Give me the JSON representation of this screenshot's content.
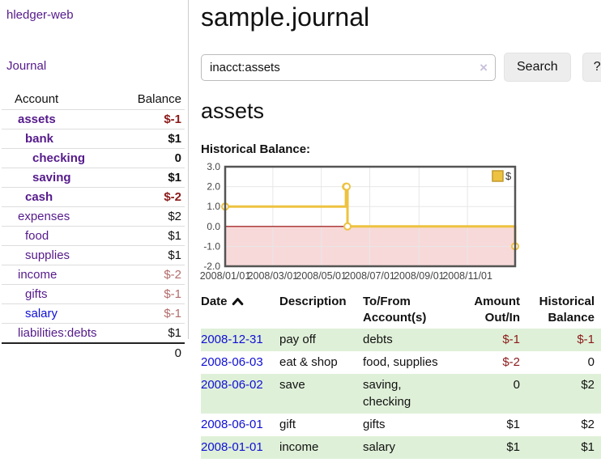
{
  "brand": "hledger-web",
  "nav": {
    "journal": "Journal"
  },
  "colors": {
    "link_purple": "#551a8b",
    "link_blue": "#0f0fd6",
    "negative_strong": "#8b1a1a",
    "negative_muted": "#b36b6b",
    "row_stripe_green": "#dff0d8",
    "chart_line_gold": "#edc240",
    "chart_negative_pink": "#f8d9d9",
    "chart_zero_line": "#930000"
  },
  "sidebar": {
    "col_account": "Account",
    "col_balance": "Balance",
    "rows": [
      {
        "name": "assets",
        "depth": 0,
        "bold": true,
        "link": "purple",
        "balance": "$-1",
        "neg": "strong"
      },
      {
        "name": "bank",
        "depth": 1,
        "bold": true,
        "link": "purple",
        "balance": "$1",
        "neg": "none"
      },
      {
        "name": "checking",
        "depth": 2,
        "bold": true,
        "link": "purple",
        "balance": "0",
        "neg": "none"
      },
      {
        "name": "saving",
        "depth": 2,
        "bold": true,
        "link": "purple",
        "balance": "$1",
        "neg": "none"
      },
      {
        "name": "cash",
        "depth": 1,
        "bold": true,
        "link": "purple",
        "balance": "$-2",
        "neg": "strong"
      },
      {
        "name": "expenses",
        "depth": 0,
        "bold": false,
        "link": "purple",
        "balance": "$2",
        "neg": "none"
      },
      {
        "name": "food",
        "depth": 1,
        "bold": false,
        "link": "purple",
        "balance": "$1",
        "neg": "none"
      },
      {
        "name": "supplies",
        "depth": 1,
        "bold": false,
        "link": "purple",
        "balance": "$1",
        "neg": "none"
      },
      {
        "name": "income",
        "depth": 0,
        "bold": false,
        "link": "purple",
        "balance": "$-2",
        "neg": "muted"
      },
      {
        "name": "gifts",
        "depth": 1,
        "bold": false,
        "link": "purple",
        "balance": "$-1",
        "neg": "muted"
      },
      {
        "name": "salary",
        "depth": 1,
        "bold": false,
        "link": "blue",
        "balance": "$-1",
        "neg": "muted"
      },
      {
        "name": "liabilities:debts",
        "depth": 0,
        "bold": false,
        "link": "purple",
        "balance": "$1",
        "neg": "none"
      }
    ],
    "total": "0"
  },
  "header": {
    "title": "sample.journal"
  },
  "search": {
    "value": "inacct:assets",
    "clear_icon": "×",
    "button": "Search",
    "help_button": "?"
  },
  "account_page": {
    "heading": "assets",
    "chart_label": "Historical Balance:"
  },
  "chart_data": {
    "type": "line",
    "title": "Historical Balance:",
    "x_range": [
      "2008-01-01",
      "2008-12-31"
    ],
    "ylim": [
      -2.0,
      3.0
    ],
    "y_ticks": [
      3.0,
      2.0,
      1.0,
      0.0,
      -1.0,
      -2.0
    ],
    "x_tick_dates": [
      "2008-01-01",
      "2008-03-01",
      "2008-05-01",
      "2008-07-01",
      "2008-09-01",
      "2008-11-01"
    ],
    "x_tick_labels": [
      "2008/01/01",
      "2008/03/01",
      "2008/05/01",
      "2008/07/01",
      "2008/09/01",
      "2008/11/01"
    ],
    "grid": true,
    "legend": {
      "position": "top-right",
      "entries": [
        {
          "label": "$",
          "color": "#edc240"
        }
      ]
    },
    "series": [
      {
        "name": "$",
        "style": "step-line-with-markers",
        "color": "#edc240",
        "points": [
          [
            "2008-01-01",
            1.0
          ],
          [
            "2008-06-01",
            2.0
          ],
          [
            "2008-06-02",
            2.0
          ],
          [
            "2008-06-03",
            0.0
          ],
          [
            "2008-12-31",
            -1.0
          ]
        ]
      }
    ]
  },
  "register": {
    "columns": [
      {
        "label": "Date",
        "sorted_ascending": true
      },
      {
        "label": "Description"
      },
      {
        "label": "To/From Account(s)"
      },
      {
        "label": "Amount Out/In"
      },
      {
        "label": "Historical Balance"
      }
    ],
    "rows": [
      {
        "date": "2008-12-31",
        "description": "pay off",
        "accounts": "debts",
        "amount": "$-1",
        "amount_neg": true,
        "balance": "$-1",
        "balance_neg": true
      },
      {
        "date": "2008-06-03",
        "description": "eat & shop",
        "accounts": "food, supplies",
        "amount": "$-2",
        "amount_neg": true,
        "balance": "0",
        "balance_neg": false
      },
      {
        "date": "2008-06-02",
        "description": "save",
        "accounts": "saving,\nchecking",
        "amount": "0",
        "amount_neg": false,
        "balance": "$2",
        "balance_neg": false
      },
      {
        "date": "2008-06-01",
        "description": "gift",
        "accounts": "gifts",
        "amount": "$1",
        "amount_neg": false,
        "balance": "$2",
        "balance_neg": false
      },
      {
        "date": "2008-01-01",
        "description": "income",
        "accounts": "salary",
        "amount": "$1",
        "amount_neg": false,
        "balance": "$1",
        "balance_neg": false
      }
    ]
  }
}
